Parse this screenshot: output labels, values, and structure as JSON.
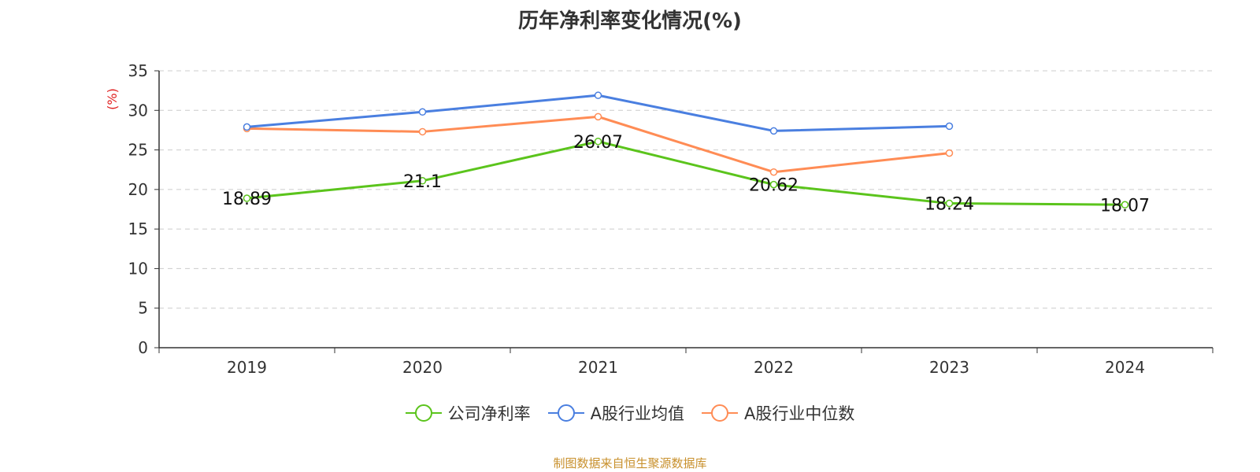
{
  "source_note": "制图数据来自恒生聚源数据库",
  "chart_data": {
    "type": "line",
    "title": "历年净利率变化情况(%)",
    "ylabel": "(%)",
    "categories": [
      "2019",
      "2020",
      "2021",
      "2022",
      "2023",
      "2024"
    ],
    "ylim": [
      0,
      35
    ],
    "yticks": [
      "0",
      "5",
      "10",
      "15",
      "20",
      "25",
      "30",
      "35"
    ],
    "grid": true,
    "legend_position": "bottom",
    "series": [
      {
        "name": "公司净利率",
        "color": "#5bc41c",
        "values": [
          18.89,
          21.1,
          26.07,
          20.62,
          18.24,
          18.07
        ],
        "labels": [
          "18.89",
          "21.1",
          "26.07",
          "20.62",
          "18.24",
          "18.07"
        ]
      },
      {
        "name": "A股行业均值",
        "color": "#4a7fe0",
        "values": [
          27.9,
          29.8,
          31.9,
          27.4,
          28.0,
          null
        ]
      },
      {
        "name": "A股行业中位数",
        "color": "#ff8c55",
        "values": [
          27.7,
          27.3,
          29.2,
          22.2,
          24.6,
          null
        ]
      }
    ]
  }
}
